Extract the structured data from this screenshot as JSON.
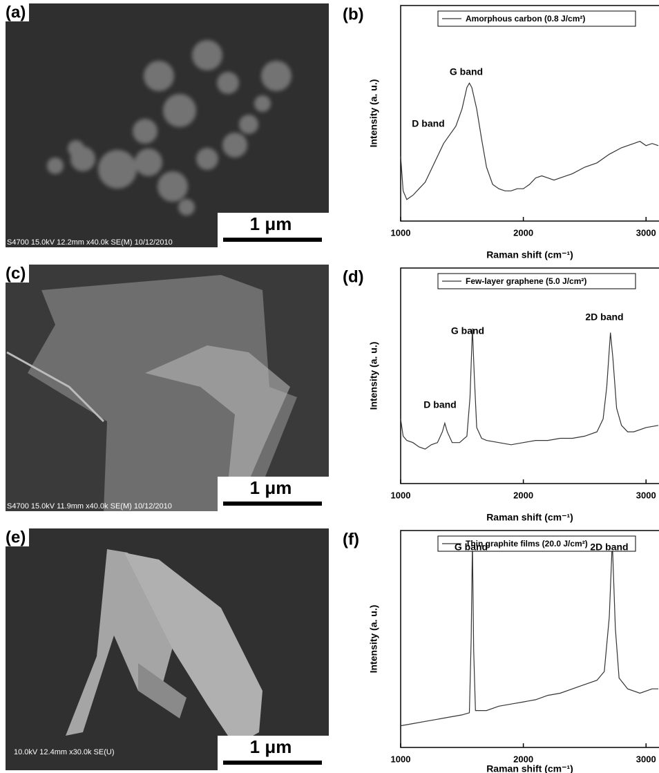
{
  "images": [
    {
      "panel": "(a)",
      "caption": "S4700 15.0kV 12.2mm x40.0k SE(M) 10/12/2010",
      "scale_bar": "1 μm"
    },
    {
      "panel": "(c)",
      "caption": "S4700 15.0kV 11.9mm x40.0k SE(M) 10/12/2010",
      "scale_bar": "1 μm"
    },
    {
      "panel": "(e)",
      "caption": "10.0kV 12.4mm x30.0k SE(U)",
      "scale_bar": "1 μm"
    }
  ],
  "chart_data": [
    {
      "type": "line",
      "panel": "(b)",
      "xlabel": "Raman shift (cm⁻¹)",
      "ylabel": "Intensity (a. u.)",
      "xlim": [
        1000,
        3100
      ],
      "xticks": [
        1000,
        2000,
        3000
      ],
      "ylim": [
        0,
        100
      ],
      "annotations": [
        "D band",
        "G band"
      ],
      "x": [
        1000,
        1020,
        1050,
        1100,
        1150,
        1200,
        1250,
        1300,
        1350,
        1400,
        1450,
        1500,
        1540,
        1560,
        1580,
        1620,
        1660,
        1700,
        1750,
        1800,
        1850,
        1900,
        1950,
        2000,
        2050,
        2100,
        2150,
        2200,
        2250,
        2300,
        2400,
        2500,
        2600,
        2700,
        2800,
        2900,
        2950,
        3000,
        3050,
        3100
      ],
      "series": [
        {
          "name": "Amorphous carbon (0.8 J/cm²)",
          "color": "#333333",
          "values": [
            30,
            14,
            10,
            12,
            15,
            18,
            24,
            30,
            36,
            40,
            44,
            52,
            62,
            64,
            62,
            52,
            38,
            25,
            17,
            15,
            14,
            14,
            15,
            15,
            17,
            20,
            21,
            20,
            19,
            20,
            22,
            25,
            27,
            31,
            34,
            36,
            37,
            35,
            36,
            35
          ]
        }
      ]
    },
    {
      "type": "line",
      "panel": "(d)",
      "xlabel": "Raman shift (cm⁻¹)",
      "ylabel": "Intensity (a. u.)",
      "xlim": [
        1000,
        3100
      ],
      "xticks": [
        1000,
        2000,
        3000
      ],
      "ylim": [
        0,
        100
      ],
      "annotations": [
        "D band",
        "G band",
        "2D band"
      ],
      "x": [
        1000,
        1020,
        1050,
        1100,
        1150,
        1200,
        1250,
        1300,
        1340,
        1360,
        1380,
        1420,
        1480,
        1540,
        1565,
        1585,
        1600,
        1620,
        1660,
        1700,
        1800,
        1900,
        2000,
        2100,
        2200,
        2300,
        2400,
        2500,
        2600,
        2650,
        2680,
        2710,
        2730,
        2760,
        2800,
        2850,
        2900,
        3000,
        3100
      ],
      "series": [
        {
          "name": "Few-layer graphene (5.0 J/cm²)",
          "color": "#333333",
          "values": [
            30,
            22,
            20,
            19,
            17,
            16,
            18,
            19,
            24,
            28,
            24,
            19,
            19,
            22,
            40,
            72,
            50,
            26,
            21,
            20,
            19,
            18,
            19,
            20,
            20,
            21,
            21,
            22,
            24,
            30,
            45,
            70,
            58,
            35,
            27,
            24,
            24,
            26,
            27
          ]
        }
      ]
    },
    {
      "type": "line",
      "panel": "(f)",
      "xlabel": "Raman shift (cm⁻¹)",
      "ylabel": "Intensity (a. u.)",
      "xlim": [
        1000,
        3100
      ],
      "xticks": [
        1000,
        2000,
        3000
      ],
      "ylim": [
        0,
        100
      ],
      "annotations": [
        "G band",
        "2D band"
      ],
      "x": [
        1000,
        1100,
        1200,
        1300,
        1400,
        1500,
        1560,
        1575,
        1585,
        1595,
        1610,
        1700,
        1800,
        1900,
        2000,
        2100,
        2200,
        2300,
        2400,
        2500,
        2600,
        2660,
        2700,
        2725,
        2750,
        2780,
        2850,
        2950,
        3050,
        3100
      ],
      "series": [
        {
          "name": "Thin graphite films (20.0 J/cm²)",
          "color": "#333333",
          "values": [
            10,
            11,
            12,
            13,
            14,
            15,
            16,
            50,
            95,
            45,
            17,
            17,
            19,
            20,
            21,
            22,
            24,
            25,
            27,
            29,
            31,
            35,
            60,
            95,
            55,
            32,
            27,
            25,
            27,
            27
          ]
        }
      ]
    }
  ]
}
